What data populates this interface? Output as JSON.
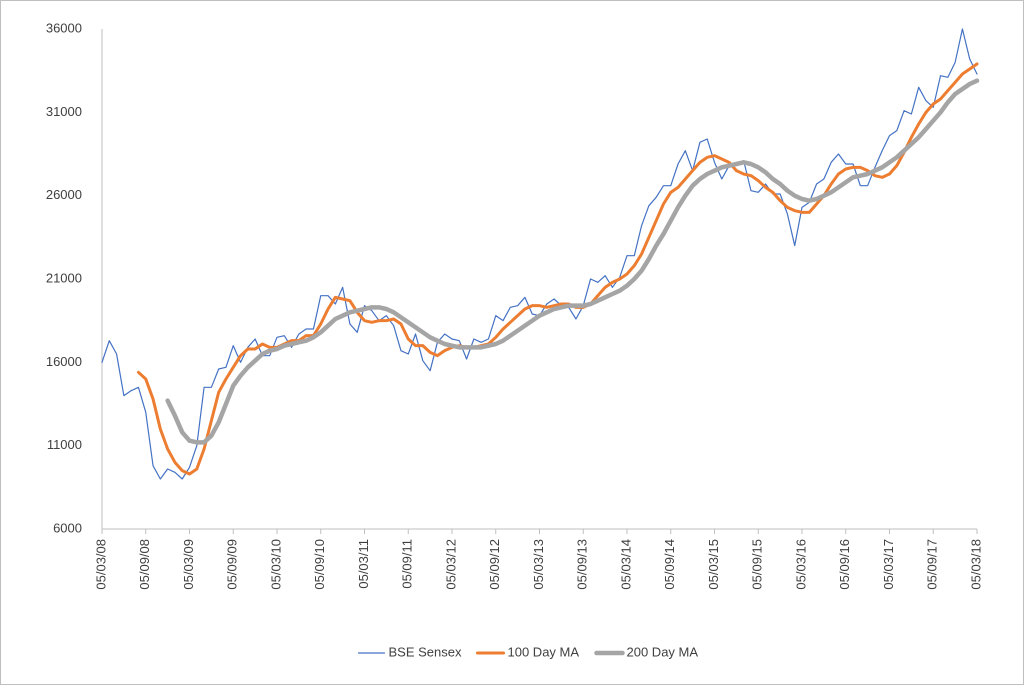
{
  "chart_data": {
    "type": "line",
    "categories": [
      "05/03/08",
      null,
      null,
      null,
      null,
      null,
      "05/09/08",
      null,
      null,
      null,
      null,
      null,
      "05/03/09",
      null,
      null,
      null,
      null,
      null,
      "05/09/09",
      null,
      null,
      null,
      null,
      null,
      "05/03/10",
      null,
      null,
      null,
      null,
      null,
      "05/09/10",
      null,
      null,
      null,
      null,
      null,
      "05/03/11",
      null,
      null,
      null,
      null,
      null,
      "05/09/11",
      null,
      null,
      null,
      null,
      null,
      "05/03/12",
      null,
      null,
      null,
      null,
      null,
      "05/09/12",
      null,
      null,
      null,
      null,
      null,
      "05/03/13",
      null,
      null,
      null,
      null,
      null,
      "05/09/13",
      null,
      null,
      null,
      null,
      null,
      "05/03/14",
      null,
      null,
      null,
      null,
      null,
      "05/09/14",
      null,
      null,
      null,
      null,
      null,
      "05/03/15",
      null,
      null,
      null,
      null,
      null,
      "05/09/15",
      null,
      null,
      null,
      null,
      null,
      "05/03/16",
      null,
      null,
      null,
      null,
      null,
      "05/09/16",
      null,
      null,
      null,
      null,
      null,
      "05/03/17",
      null,
      null,
      null,
      null,
      null,
      "05/09/17",
      null,
      null,
      null,
      null,
      null,
      "05/03/18"
    ],
    "series": [
      {
        "name": "BSE Sensex",
        "color": "#4472c4",
        "width": 1.2,
        "values": [
          16000,
          17300,
          16500,
          14000,
          14300,
          14500,
          13000,
          9800,
          9000,
          9600,
          9400,
          9000,
          9700,
          11000,
          14500,
          14500,
          15600,
          15700,
          17000,
          16000,
          16900,
          17400,
          16400,
          16400,
          17500,
          17600,
          16900,
          17700,
          18000,
          18000,
          20000,
          20000,
          19500,
          20500,
          18300,
          17800,
          19400,
          19100,
          18500,
          18800,
          18200,
          16700,
          16500,
          17700,
          16100,
          15500,
          17200,
          17700,
          17400,
          17300,
          16200,
          17400,
          17200,
          17400,
          18800,
          18500,
          19300,
          19400,
          19900,
          18900,
          18800,
          19500,
          19800,
          19400,
          19300,
          18600,
          19400,
          21000,
          20800,
          21200,
          20500,
          21100,
          22400,
          22400,
          24200,
          25400,
          25900,
          26600,
          26600,
          27900,
          28700,
          27500,
          29200,
          29400,
          28000,
          27000,
          27800,
          27800,
          28100,
          26300,
          26200,
          26700,
          26100,
          26100,
          24900,
          23000,
          25300,
          25600,
          26700,
          27000,
          28000,
          28500,
          27900,
          27900,
          26600,
          26600,
          27700,
          28700,
          29600,
          29900,
          31100,
          30900,
          32500,
          31700,
          31300,
          33200,
          33100,
          34000,
          36000,
          34200,
          33300
        ]
      },
      {
        "name": "100 Day MA",
        "color": "#ed7d31",
        "width": 3,
        "values": [
          null,
          null,
          null,
          null,
          null,
          15400,
          15000,
          13800,
          12000,
          10800,
          10000,
          9500,
          9300,
          9600,
          10800,
          12500,
          14200,
          15000,
          15700,
          16400,
          16800,
          16800,
          17100,
          16900,
          16900,
          17100,
          17300,
          17300,
          17600,
          17600,
          18300,
          19200,
          19900,
          19800,
          19700,
          19000,
          18500,
          18400,
          18500,
          18500,
          18600,
          18300,
          17400,
          17000,
          17000,
          16600,
          16400,
          16700,
          16900,
          17000,
          16900,
          16900,
          17000,
          17100,
          17500,
          18000,
          18400,
          18800,
          19200,
          19400,
          19400,
          19300,
          19400,
          19500,
          19500,
          19300,
          19300,
          19500,
          20000,
          20500,
          20800,
          21000,
          21300,
          21800,
          22500,
          23500,
          24500,
          25500,
          26200,
          26500,
          27000,
          27500,
          28000,
          28300,
          28400,
          28200,
          28000,
          27500,
          27300,
          27200,
          26900,
          26500,
          26200,
          25700,
          25300,
          25100,
          25000,
          25000,
          25500,
          26000,
          26700,
          27300,
          27600,
          27700,
          27700,
          27500,
          27200,
          27100,
          27300,
          27800,
          28600,
          29500,
          30300,
          31000,
          31500,
          31800,
          32300,
          32800,
          33300,
          33600,
          33900
        ]
      },
      {
        "name": "200 Day MA",
        "color": "#a5a5a5",
        "width": 4.5,
        "values": [
          null,
          null,
          null,
          null,
          null,
          null,
          null,
          null,
          null,
          13700,
          12800,
          11800,
          11300,
          11200,
          11200,
          11600,
          12400,
          13500,
          14600,
          15200,
          15700,
          16100,
          16500,
          16700,
          16800,
          17000,
          17100,
          17200,
          17300,
          17500,
          17800,
          18200,
          18600,
          18800,
          19000,
          19100,
          19200,
          19300,
          19300,
          19200,
          19000,
          18700,
          18400,
          18100,
          17800,
          17500,
          17300,
          17100,
          17000,
          16900,
          16900,
          16900,
          16900,
          17000,
          17100,
          17300,
          17600,
          17900,
          18200,
          18500,
          18800,
          19000,
          19200,
          19300,
          19400,
          19400,
          19400,
          19500,
          19700,
          19900,
          20100,
          20300,
          20600,
          21000,
          21500,
          22200,
          23000,
          23700,
          24500,
          25300,
          26000,
          26600,
          27000,
          27300,
          27500,
          27700,
          27800,
          27900,
          28000,
          27900,
          27700,
          27400,
          27000,
          26700,
          26300,
          26000,
          25800,
          25700,
          25800,
          26000,
          26200,
          26500,
          26800,
          27100,
          27200,
          27300,
          27500,
          27700,
          28000,
          28300,
          28700,
          29100,
          29500,
          30000,
          30500,
          31000,
          31600,
          32100,
          32400,
          32700,
          32900
        ]
      }
    ],
    "ylim": [
      6000,
      36000
    ],
    "yticks": [
      6000,
      11000,
      16000,
      21000,
      26000,
      31000,
      36000
    ],
    "grid": false,
    "legend": "bottom"
  }
}
